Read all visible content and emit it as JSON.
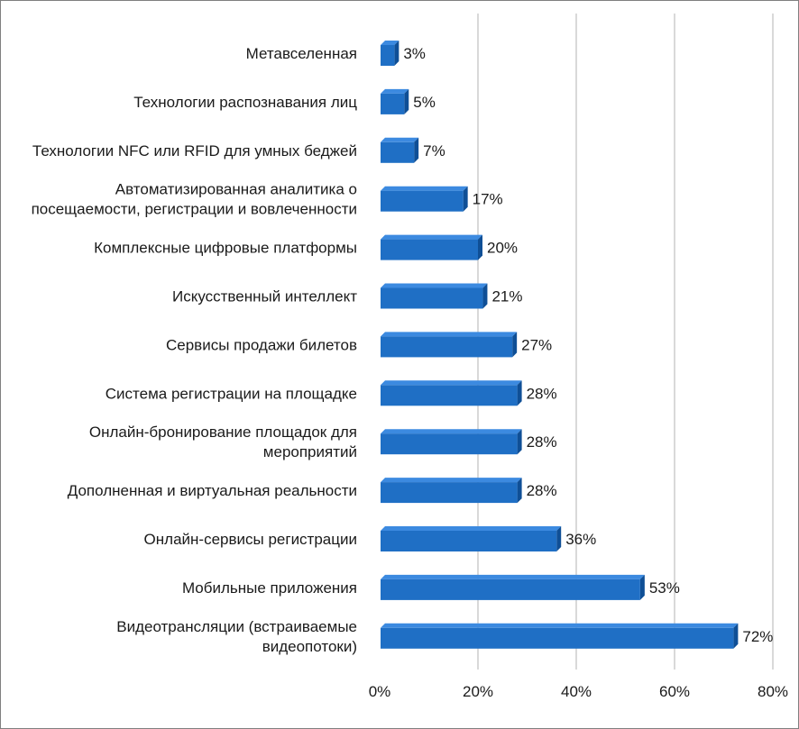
{
  "chart_data": {
    "type": "bar",
    "orientation": "horizontal",
    "title": "",
    "xlabel": "",
    "ylabel": "",
    "categories": [
      "Метавселенная",
      "Технологии распознавания лиц",
      "Технологии NFC или RFID для умных беджей",
      "Автоматизированная аналитика о посещаемости, регистрации и вовлеченности",
      "Комплексные цифровые платформы",
      "Искусственный интеллект",
      "Сервисы продажи билетов",
      "Система регистрации на площадке",
      "Онлайн-бронирование площадок для мероприятий",
      "Дополненная и виртуальная реальности",
      "Онлайн-сервисы регистрации",
      "Мобильные приложения",
      "Видеотрансляции (встраиваемые видеопотоки)"
    ],
    "category_lines": [
      [
        "Метавселенная"
      ],
      [
        "Технологии распознавания лиц"
      ],
      [
        "Технологии NFC или RFID для умных беджей"
      ],
      [
        "Автоматизированная аналитика о",
        "посещаемости, регистрации и вовлеченности"
      ],
      [
        "Комплексные цифровые платформы"
      ],
      [
        "Искусственный интеллект"
      ],
      [
        "Сервисы продажи билетов"
      ],
      [
        "Система регистрации на площадке"
      ],
      [
        "Онлайн-бронирование площадок для",
        "мероприятий"
      ],
      [
        "Дополненная и виртуальная реальности"
      ],
      [
        "Онлайн-сервисы регистрации"
      ],
      [
        "Мобильные приложения"
      ],
      [
        "Видеотрансляции (встраиваемые",
        "видеопотоки)"
      ]
    ],
    "values": [
      3,
      5,
      7,
      17,
      20,
      21,
      27,
      28,
      28,
      28,
      36,
      53,
      72
    ],
    "value_labels": [
      "3%",
      "5%",
      "7%",
      "17%",
      "20%",
      "21%",
      "27%",
      "28%",
      "28%",
      "28%",
      "36%",
      "53%",
      "72%"
    ],
    "xlim": [
      0,
      80
    ],
    "ticks": [
      0,
      20,
      40,
      60,
      80
    ],
    "tick_labels": [
      "0%",
      "20%",
      "40%",
      "60%",
      "80%"
    ],
    "grid": true,
    "legend": "none",
    "style": "3d-bar"
  },
  "colors": {
    "bar_front": "#1f6fc5",
    "bar_top": "#3c8ae0",
    "bar_side": "#0f4f96",
    "grid": "#d9d9d9",
    "border": "#7f7f7f"
  }
}
